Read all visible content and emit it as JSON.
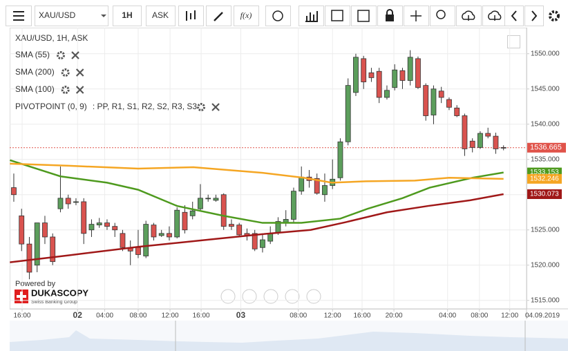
{
  "toolbar": {
    "symbol": "XAU/USD",
    "timeframe": "1H",
    "side": "ASK",
    "function_button": "f(x)"
  },
  "branding": {
    "powered_by": "Powered by",
    "brand": "DUKASCOPY",
    "tagline": "Swiss Banking Group"
  },
  "chart_data": {
    "type": "candlestick",
    "title": "XAU/USD, 1H, ASK",
    "x": [
      0,
      1,
      2,
      3,
      4,
      5,
      6,
      7,
      8,
      9,
      10,
      11,
      12,
      13,
      14,
      15,
      16,
      17,
      18,
      19,
      20,
      21,
      22,
      23,
      24,
      25,
      26,
      27,
      28,
      29,
      30,
      31,
      32,
      33,
      34,
      35,
      36,
      37,
      38,
      39,
      40,
      41,
      42,
      43,
      44,
      45,
      46,
      47,
      48,
      49,
      50,
      51,
      52,
      53,
      54,
      55,
      56,
      57,
      58,
      59,
      60,
      61,
      62,
      63
    ],
    "open": [
      1531,
      1527,
      1523,
      1520,
      1526,
      1524,
      1528,
      1529.5,
      1529,
      1529,
      1525,
      1525.7,
      1526,
      1525.5,
      1524.5,
      1522.5,
      1522.5,
      1521.3,
      1525.7,
      1524.2,
      1524.5,
      1524,
      1527.5,
      1527,
      1528,
      1529.5,
      1529.2,
      1530,
      1525.8,
      1525.7,
      1524.5,
      1524.5,
      1522.5,
      1523.4,
      1524.6,
      1526,
      1526.5,
      1530.5,
      1532.5,
      1532.3,
      1530,
      1531.3,
      1532.4,
      1537.5,
      1544.5,
      1549.3,
      1547.3,
      1547.5,
      1543.8,
      1545.2,
      1547.6,
      1546.2,
      1549.3,
      1545.5,
      1541.3,
      1544.7,
      1543.5,
      1542.3,
      1541.2,
      1537.6,
      1536.7,
      1538.7,
      1538.3,
      1536.7
    ],
    "high": [
      1533,
      1528,
      1524,
      1526,
      1527,
      1524.5,
      1534,
      1530,
      1529.5,
      1529.5,
      1526.5,
      1526.7,
      1526.5,
      1526,
      1525,
      1523.5,
      1525,
      1526.3,
      1526,
      1525,
      1525.5,
      1528.2,
      1528.5,
      1529,
      1531.5,
      1530,
      1530,
      1530.2,
      1526.5,
      1526,
      1525.2,
      1525,
      1524.5,
      1525.5,
      1526.8,
      1527.8,
      1531,
      1534,
      1533.5,
      1533,
      1533,
      1535,
      1538,
      1546.5,
      1550,
      1549.7,
      1548,
      1548,
      1545.5,
      1548.5,
      1548,
      1550.5,
      1549.6,
      1545.8,
      1545.5,
      1545.3,
      1543.8,
      1542.7,
      1541.5,
      1538,
      1539,
      1539.5,
      1538.8,
      1537
    ],
    "low": [
      1529,
      1522,
      1518,
      1519,
      1523,
      1520,
      1527.5,
      1528,
      1528.5,
      1523,
      1524,
      1525.3,
      1525,
      1524,
      1522,
      1520,
      1521,
      1521,
      1523.5,
      1524,
      1523.5,
      1523.8,
      1524.5,
      1526.5,
      1527.8,
      1529,
      1529,
      1525,
      1525,
      1524,
      1523.5,
      1522,
      1521.8,
      1523,
      1524.3,
      1525.5,
      1526,
      1530,
      1531,
      1530,
      1529,
      1530.8,
      1532,
      1537,
      1544,
      1545,
      1546,
      1543,
      1543.5,
      1544.8,
      1545,
      1545.5,
      1545,
      1540.5,
      1540,
      1543,
      1542,
      1541,
      1535.5,
      1536,
      1536.5,
      1538,
      1535.8,
      1536.3
    ],
    "close": [
      1530,
      1523,
      1519,
      1526,
      1524,
      1520.5,
      1529.5,
      1528.7,
      1529,
      1524.5,
      1525.8,
      1526,
      1525.5,
      1525,
      1522.5,
      1522,
      1521.5,
      1525.8,
      1524,
      1524.5,
      1524,
      1527.8,
      1525,
      1527.7,
      1529.5,
      1529.5,
      1529.5,
      1525.5,
      1525.5,
      1524.3,
      1524.2,
      1522.3,
      1523.6,
      1524.5,
      1526.2,
      1526.5,
      1530.5,
      1532.5,
      1532,
      1530.2,
      1531.3,
      1532.2,
      1537.5,
      1545.5,
      1549.5,
      1546,
      1546.6,
      1543.8,
      1544.8,
      1547.7,
      1546.2,
      1549.5,
      1545.2,
      1541.2,
      1545,
      1543.8,
      1542.4,
      1541.2,
      1536.5,
      1536.7,
      1538.7,
      1538.3,
      1536.5,
      1536.665
    ],
    "up_color": "#5c9e5c",
    "down_color": "#d9534f",
    "current_price": 1536.665,
    "current_price_color": "#e0534a",
    "series": [
      {
        "name": "SMA (55)",
        "color": "#4e9a1e",
        "x": [
          -0.5,
          6,
          12,
          16,
          21,
          27,
          32,
          37,
          42,
          45.5,
          50,
          53.5,
          59,
          63
        ],
        "values": [
          1534.9,
          1532.6,
          1531.7,
          1530.7,
          1528.4,
          1527,
          1526,
          1526,
          1526.6,
          1528,
          1529.5,
          1531,
          1532.4,
          1533.153
        ]
      },
      {
        "name": "SMA (200)",
        "color": "#a01818",
        "x": [
          -0.5,
          7.1,
          16,
          24.9,
          32,
          38.2,
          42.7,
          48,
          53.3,
          58.7,
          63
        ],
        "values": [
          1520.4,
          1521.4,
          1522.6,
          1523.6,
          1524.4,
          1525,
          1526.1,
          1527.5,
          1528.4,
          1529.2,
          1530.073
        ]
      },
      {
        "name": "SMA (100)",
        "color": "#f5a623",
        "x": [
          -0.5,
          7.1,
          16,
          23.1,
          32,
          37.3,
          40.9,
          45.3,
          51.6,
          56,
          63
        ],
        "values": [
          1534.4,
          1534.1,
          1533.7,
          1533.9,
          1533.1,
          1532.4,
          1531.7,
          1531.9,
          1532,
          1532.4,
          1532.246
        ]
      }
    ],
    "pivot": {
      "name": "PIVOTPOINT (0, 9)",
      "levels": [
        {
          "label": ": PP,",
          "color": "#2196f3"
        },
        {
          "label": " R1,",
          "color": "#4e9a1e"
        },
        {
          "label": " S1,",
          "color": "#c0392b"
        },
        {
          "label": " R2,",
          "color": "#d9534f"
        },
        {
          "label": " S2,",
          "color": "#f39c12"
        },
        {
          "label": " R3,",
          "color": "#f5a623"
        },
        {
          "label": " S3",
          "color": "#f5b800"
        }
      ]
    },
    "xlim": [
      -0.53,
      65.96
    ],
    "xticks": [
      {
        "value": 1.07,
        "label": "16:00"
      },
      {
        "value": 8.2,
        "label": "02"
      },
      {
        "value": 11.7,
        "label": "04:00"
      },
      {
        "value": 16,
        "label": "08:00"
      },
      {
        "value": 20.1,
        "label": "12:00"
      },
      {
        "value": 24.1,
        "label": "16:00"
      },
      {
        "value": 29.2,
        "label": "03"
      },
      {
        "value": 36.6,
        "label": "08:00"
      },
      {
        "value": 41,
        "label": "12:00"
      },
      {
        "value": 44.8,
        "label": "16:00"
      },
      {
        "value": 48.9,
        "label": "20:00"
      },
      {
        "value": 55.8,
        "label": "04:00"
      },
      {
        "value": 59.9,
        "label": "08:00"
      },
      {
        "value": 63.8,
        "label": "12:00"
      }
    ],
    "date_label": "04.09.2019",
    "ylim": [
      1513.8,
      1553.7
    ],
    "yticks": [
      {
        "value": 1515,
        "label": "1515.000"
      },
      {
        "value": 1520,
        "label": "1520.000"
      },
      {
        "value": 1525,
        "label": "1525.000"
      },
      {
        "value": 1530,
        "label": "1530.000"
      },
      {
        "value": 1535,
        "label": "1535.000"
      },
      {
        "value": 1540,
        "label": "1540.000"
      },
      {
        "value": 1545,
        "label": "1545.000"
      },
      {
        "value": 1550,
        "label": "1550.000"
      }
    ],
    "grid": true
  }
}
